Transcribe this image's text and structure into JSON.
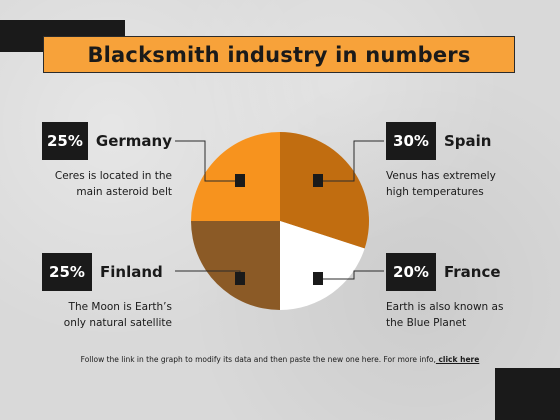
{
  "title": "Blacksmith industry in numbers",
  "entries": [
    {
      "pct": "25%",
      "country": "Germany",
      "desc_line1": "Ceres is located in the",
      "desc_line2": "main asteroid belt"
    },
    {
      "pct": "30%",
      "country": "Spain",
      "desc_line1": "Venus has extremely",
      "desc_line2": "high temperatures"
    },
    {
      "pct": "25%",
      "country": "Finland",
      "desc_line1": "The Moon is Earth’s",
      "desc_line2": "only natural satellite"
    },
    {
      "pct": "20%",
      "country": "France",
      "desc_line1": "Earth is also known as",
      "desc_line2": "the Blue Planet"
    }
  ],
  "footer": {
    "text": "Follow the link in the graph to modify its data and then paste the new one here. For more info,",
    "link": " click here"
  },
  "chart_data": {
    "type": "pie",
    "slices": [
      {
        "label": "Spain",
        "value": 30,
        "color": "#c16d10"
      },
      {
        "label": "France",
        "value": 20,
        "color": "#ffffff"
      },
      {
        "label": "Finland",
        "value": 25,
        "color": "#8b5a26"
      },
      {
        "label": "Germany",
        "value": 25,
        "color": "#f7931e"
      }
    ]
  }
}
